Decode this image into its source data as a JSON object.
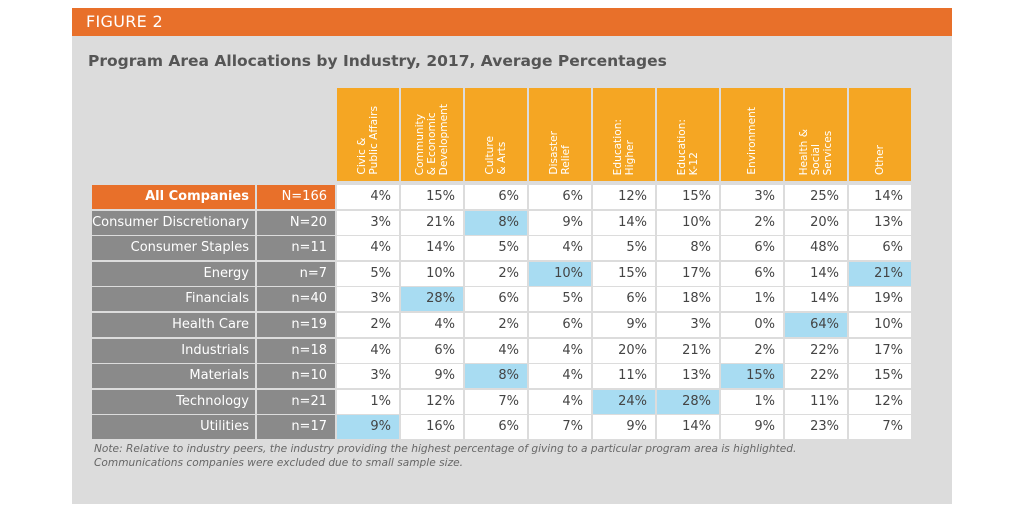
{
  "figure_label": "FIGURE 2",
  "note_line1": "Note: Relative to industry peers, the industry providing the highest percentage of giving to a particular program area is highlighted.",
  "note_line2": "Communications companies were excluded due to small sample size.",
  "colors": {
    "orange": "#e8702a",
    "header_orange": "#f5a623",
    "highlight": "#a8dcf2",
    "row_gray": "#8a8a8a"
  },
  "chart_data": {
    "type": "table",
    "title": "Program Area Allocations by Industry, 2017, Average Percentages",
    "columns": [
      "Civic &\nPublic Affairs",
      "Community\n& Economic\nDevelopment",
      "Culture\n& Arts",
      "Disaster\nRelief",
      "Education:\nHigher",
      "Education:\nK-12",
      "Environment",
      "Health &\nSocial\nServices",
      "Other"
    ],
    "rows": [
      {
        "industry": "All Companies",
        "n": "N=166",
        "values": [
          "4%",
          "15%",
          "6%",
          "6%",
          "12%",
          "15%",
          "3%",
          "25%",
          "14%"
        ],
        "highlight": []
      },
      {
        "industry": "Consumer Discretionary",
        "n": "N=20",
        "values": [
          "3%",
          "21%",
          "8%",
          "9%",
          "14%",
          "10%",
          "2%",
          "20%",
          "13%"
        ],
        "highlight": [
          2
        ]
      },
      {
        "industry": "Consumer Staples",
        "n": "n=11",
        "values": [
          "4%",
          "14%",
          "5%",
          "4%",
          "5%",
          "8%",
          "6%",
          "48%",
          "6%"
        ],
        "highlight": []
      },
      {
        "industry": "Energy",
        "n": "n=7",
        "values": [
          "5%",
          "10%",
          "2%",
          "10%",
          "15%",
          "17%",
          "6%",
          "14%",
          "21%"
        ],
        "highlight": [
          3,
          8
        ]
      },
      {
        "industry": "Financials",
        "n": "n=40",
        "values": [
          "3%",
          "28%",
          "6%",
          "5%",
          "6%",
          "18%",
          "1%",
          "14%",
          "19%"
        ],
        "highlight": [
          1
        ]
      },
      {
        "industry": "Health Care",
        "n": "n=19",
        "values": [
          "2%",
          "4%",
          "2%",
          "6%",
          "9%",
          "3%",
          "0%",
          "64%",
          "10%"
        ],
        "highlight": [
          7
        ]
      },
      {
        "industry": "Industrials",
        "n": "n=18",
        "values": [
          "4%",
          "6%",
          "4%",
          "4%",
          "20%",
          "21%",
          "2%",
          "22%",
          "17%"
        ],
        "highlight": []
      },
      {
        "industry": "Materials",
        "n": "n=10",
        "values": [
          "3%",
          "9%",
          "8%",
          "4%",
          "11%",
          "13%",
          "15%",
          "22%",
          "15%"
        ],
        "highlight": [
          2,
          6
        ]
      },
      {
        "industry": "Technology",
        "n": "n=21",
        "values": [
          "1%",
          "12%",
          "7%",
          "4%",
          "24%",
          "28%",
          "1%",
          "11%",
          "12%"
        ],
        "highlight": [
          4,
          5
        ]
      },
      {
        "industry": "Utilities",
        "n": "n=17",
        "values": [
          "9%",
          "16%",
          "6%",
          "7%",
          "9%",
          "14%",
          "9%",
          "23%",
          "7%"
        ],
        "highlight": [
          0
        ]
      }
    ]
  }
}
